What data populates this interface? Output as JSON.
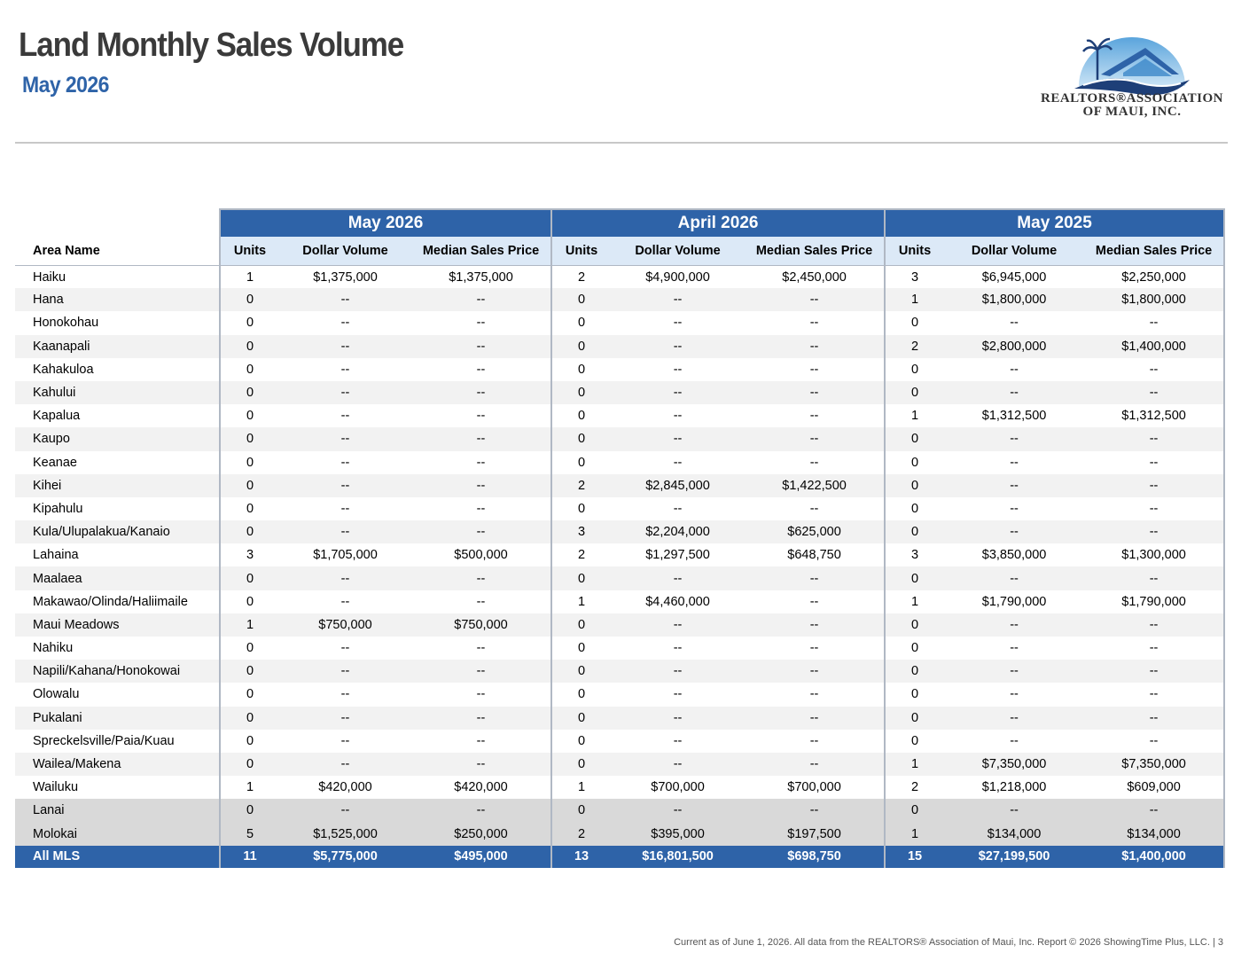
{
  "header": {
    "title": "Land Monthly Sales Volume",
    "subtitle": "May 2026"
  },
  "logo": {
    "line1": "REALTORS®ASSOCIATION",
    "line2": "OF MAUI, INC.",
    "colors": {
      "sky": "#3d88c9",
      "roof": "#2e63a8",
      "wave": "#1e3f78"
    }
  },
  "table": {
    "area_header": "Area Name",
    "groups": [
      "May 2026",
      "April 2026",
      "May 2025"
    ],
    "sub_headers": [
      "Units",
      "Dollar Volume",
      "Median Sales Price"
    ],
    "rows": [
      [
        "Haiku",
        "1",
        "$1,375,000",
        "$1,375,000",
        "2",
        "$4,900,000",
        "$2,450,000",
        "3",
        "$6,945,000",
        "$2,250,000"
      ],
      [
        "Hana",
        "0",
        "--",
        "--",
        "0",
        "--",
        "--",
        "1",
        "$1,800,000",
        "$1,800,000"
      ],
      [
        "Honokohau",
        "0",
        "--",
        "--",
        "0",
        "--",
        "--",
        "0",
        "--",
        "--"
      ],
      [
        "Kaanapali",
        "0",
        "--",
        "--",
        "0",
        "--",
        "--",
        "2",
        "$2,800,000",
        "$1,400,000"
      ],
      [
        "Kahakuloa",
        "0",
        "--",
        "--",
        "0",
        "--",
        "--",
        "0",
        "--",
        "--"
      ],
      [
        "Kahului",
        "0",
        "--",
        "--",
        "0",
        "--",
        "--",
        "0",
        "--",
        "--"
      ],
      [
        "Kapalua",
        "0",
        "--",
        "--",
        "0",
        "--",
        "--",
        "1",
        "$1,312,500",
        "$1,312,500"
      ],
      [
        "Kaupo",
        "0",
        "--",
        "--",
        "0",
        "--",
        "--",
        "0",
        "--",
        "--"
      ],
      [
        "Keanae",
        "0",
        "--",
        "--",
        "0",
        "--",
        "--",
        "0",
        "--",
        "--"
      ],
      [
        "Kihei",
        "0",
        "--",
        "--",
        "2",
        "$2,845,000",
        "$1,422,500",
        "0",
        "--",
        "--"
      ],
      [
        "Kipahulu",
        "0",
        "--",
        "--",
        "0",
        "--",
        "--",
        "0",
        "--",
        "--"
      ],
      [
        "Kula/Ulupalakua/Kanaio",
        "0",
        "--",
        "--",
        "3",
        "$2,204,000",
        "$625,000",
        "0",
        "--",
        "--"
      ],
      [
        "Lahaina",
        "3",
        "$1,705,000",
        "$500,000",
        "2",
        "$1,297,500",
        "$648,750",
        "3",
        "$3,850,000",
        "$1,300,000"
      ],
      [
        "Maalaea",
        "0",
        "--",
        "--",
        "0",
        "--",
        "--",
        "0",
        "--",
        "--"
      ],
      [
        "Makawao/Olinda/Haliimaile",
        "0",
        "--",
        "--",
        "1",
        "$4,460,000",
        "--",
        "1",
        "$1,790,000",
        "$1,790,000"
      ],
      [
        "Maui Meadows",
        "1",
        "$750,000",
        "$750,000",
        "0",
        "--",
        "--",
        "0",
        "--",
        "--"
      ],
      [
        "Nahiku",
        "0",
        "--",
        "--",
        "0",
        "--",
        "--",
        "0",
        "--",
        "--"
      ],
      [
        "Napili/Kahana/Honokowai",
        "0",
        "--",
        "--",
        "0",
        "--",
        "--",
        "0",
        "--",
        "--"
      ],
      [
        "Olowalu",
        "0",
        "--",
        "--",
        "0",
        "--",
        "--",
        "0",
        "--",
        "--"
      ],
      [
        "Pukalani",
        "0",
        "--",
        "--",
        "0",
        "--",
        "--",
        "0",
        "--",
        "--"
      ],
      [
        "Spreckelsville/Paia/Kuau",
        "0",
        "--",
        "--",
        "0",
        "--",
        "--",
        "0",
        "--",
        "--"
      ],
      [
        "Wailea/Makena",
        "0",
        "--",
        "--",
        "0",
        "--",
        "--",
        "1",
        "$7,350,000",
        "$7,350,000"
      ],
      [
        "Wailuku",
        "1",
        "$420,000",
        "$420,000",
        "1",
        "$700,000",
        "$700,000",
        "2",
        "$1,218,000",
        "$609,000"
      ]
    ],
    "island_rows": [
      [
        "Lanai",
        "0",
        "--",
        "--",
        "0",
        "--",
        "--",
        "0",
        "--",
        "--"
      ],
      [
        "Molokai",
        "5",
        "$1,525,000",
        "$250,000",
        "2",
        "$395,000",
        "$197,500",
        "1",
        "$134,000",
        "$134,000"
      ]
    ],
    "total_row": [
      "All MLS",
      "11",
      "$5,775,000",
      "$495,000",
      "13",
      "$16,801,500",
      "$698,750",
      "15",
      "$27,199,500",
      "$1,400,000"
    ]
  },
  "footer": "Current as of June 1, 2026. All data from the REALTORS® Association of Maui, Inc. Report © 2026 ShowingTime Plus, LLC.  |  3"
}
